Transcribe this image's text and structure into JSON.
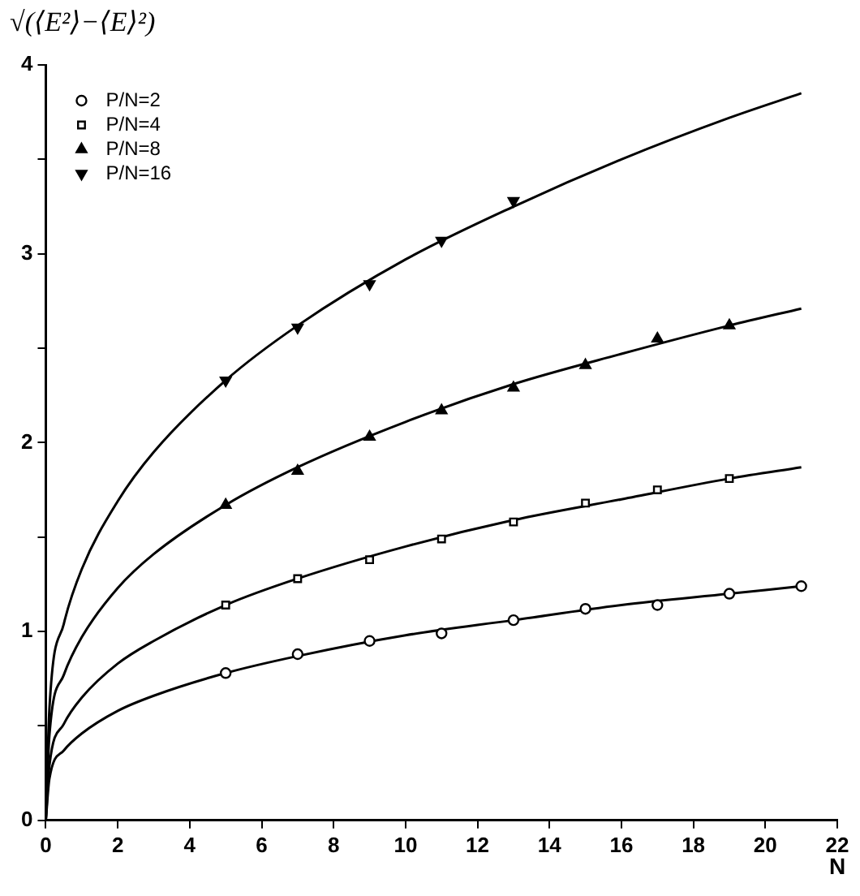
{
  "chart_data": {
    "type": "scatter",
    "xlabel": "N",
    "ylabel": "√(⟨E²⟩−⟨E⟩²)",
    "xlim": [
      0,
      22
    ],
    "xticks": [
      0,
      2,
      4,
      6,
      8,
      10,
      12,
      14,
      16,
      18,
      20,
      22
    ],
    "ylim": [
      0,
      4
    ],
    "yticks": [
      0,
      {
        "value": 0.5,
        "label": null
      },
      1,
      {
        "value": 1.5,
        "label": null
      },
      2,
      {
        "value": 2.5,
        "label": null
      },
      3,
      {
        "value": 3.5,
        "label": null
      },
      4
    ],
    "grid": false,
    "legend": "top left",
    "series": [
      {
        "name": "P/N=2",
        "color": "#000000",
        "marker": "circle",
        "x": [
          5,
          7,
          9,
          11,
          13,
          15,
          17,
          19,
          21
        ],
        "values": [
          0.78,
          0.88,
          0.95,
          0.99,
          1.06,
          1.12,
          1.14,
          1.2,
          1.24
        ]
      },
      {
        "name": "P/N=4",
        "color": "#000000",
        "marker": "square",
        "x": [
          5,
          7,
          9,
          11,
          13,
          15,
          17,
          19
        ],
        "values": [
          1.14,
          1.28,
          1.38,
          1.49,
          1.58,
          1.68,
          1.75,
          1.81
        ]
      },
      {
        "name": "P/N=8",
        "color": "#000000",
        "marker": "triangle",
        "x": [
          5,
          7,
          9,
          11,
          13,
          15,
          17,
          19
        ],
        "values": [
          1.67,
          1.85,
          2.03,
          2.17,
          2.29,
          2.41,
          2.55,
          2.62
        ]
      },
      {
        "name": "P/N=16",
        "color": "#000000",
        "marker": "triangle-down",
        "x": [
          5,
          7,
          9,
          11,
          13
        ],
        "values": [
          2.33,
          2.61,
          2.84,
          3.07,
          3.28
        ]
      },
      {
        "type": "line",
        "color": "#000000",
        "marker": "none",
        "x": [
          0,
          0.1,
          0.5,
          1,
          2,
          3,
          5,
          7,
          10,
          13,
          16,
          19,
          21
        ],
        "values": [
          0,
          0.22,
          0.37,
          0.46,
          0.58,
          0.66,
          0.78,
          0.87,
          0.98,
          1.06,
          1.14,
          1.2,
          1.24
        ]
      },
      {
        "type": "line",
        "color": "#000000",
        "marker": "none",
        "x": [
          0,
          0.1,
          0.5,
          1,
          2,
          3,
          5,
          7,
          10,
          13,
          16,
          19,
          21
        ],
        "values": [
          0,
          0.29,
          0.51,
          0.65,
          0.83,
          0.95,
          1.14,
          1.28,
          1.45,
          1.59,
          1.7,
          1.81,
          1.87
        ]
      },
      {
        "type": "line",
        "color": "#000000",
        "marker": "none",
        "x": [
          0,
          0.1,
          0.5,
          1,
          2,
          3,
          5,
          7,
          10,
          13,
          16,
          19,
          21
        ],
        "values": [
          0,
          0.45,
          0.77,
          0.97,
          1.23,
          1.41,
          1.67,
          1.87,
          2.11,
          2.31,
          2.47,
          2.62,
          2.71
        ]
      },
      {
        "type": "line",
        "color": "#000000",
        "marker": "none",
        "x": [
          0,
          0.1,
          0.5,
          1,
          2,
          3,
          5,
          7,
          10,
          13,
          16,
          19,
          21
        ],
        "values": [
          0,
          0.59,
          1.04,
          1.33,
          1.69,
          1.95,
          2.33,
          2.62,
          2.97,
          3.25,
          3.5,
          3.72,
          3.85
        ]
      }
    ]
  }
}
